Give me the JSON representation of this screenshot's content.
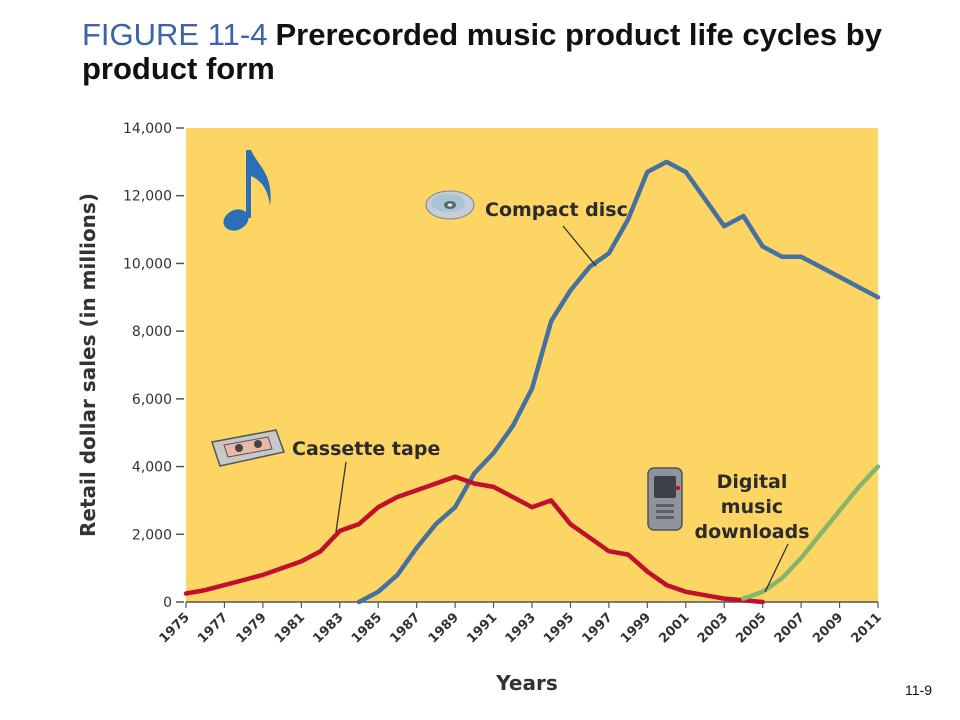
{
  "slide": {
    "figure_label": "FIGURE 11-4",
    "title": "Prerecorded music product life cycles by product form",
    "page_number": "11-9"
  },
  "colors": {
    "plot_background": "#fcd565",
    "compact_disc": "#46709f",
    "cassette_tape": "#c0102e",
    "digital_downloads": "#87b56a",
    "axis_text": "#333333"
  },
  "chart_data": {
    "type": "line",
    "title": "",
    "xlabel": "Years",
    "ylabel": "Retail dollar sales (in millions)",
    "xlim": [
      1975,
      2011
    ],
    "ylim": [
      0,
      14000
    ],
    "x_ticks": [
      "1975",
      "1977",
      "1979",
      "1981",
      "1983",
      "1985",
      "1987",
      "1989",
      "1991",
      "1993",
      "1995",
      "1997",
      "1999",
      "2001",
      "2003",
      "2005",
      "2007",
      "2009",
      "2011"
    ],
    "y_ticks": [
      "0",
      "2,000",
      "4,000",
      "6,000",
      "8,000",
      "10,000",
      "12,000",
      "14,000"
    ],
    "grid": false,
    "legend": "annotations",
    "series": [
      {
        "name": "Compact disc",
        "key": "compact_disc",
        "icon": "compact-disc-icon",
        "x": [
          1984,
          1985,
          1986,
          1987,
          1988,
          1989,
          1990,
          1991,
          1992,
          1993,
          1994,
          1995,
          1996,
          1997,
          1998,
          1999,
          2000,
          2001,
          2002,
          2003,
          2004,
          2005,
          2006,
          2007,
          2008,
          2009,
          2010,
          2011
        ],
        "y": [
          0,
          300,
          800,
          1600,
          2300,
          2800,
          3800,
          4400,
          5200,
          6300,
          8300,
          9200,
          9900,
          10300,
          11300,
          12700,
          13000,
          12700,
          11900,
          11100,
          11400,
          10500,
          10200,
          10200,
          9900,
          9600,
          9300,
          9000
        ]
      },
      {
        "name": "Cassette tape",
        "key": "cassette_tape",
        "icon": "cassette-tape-icon",
        "x": [
          1975,
          1976,
          1977,
          1978,
          1979,
          1980,
          1981,
          1982,
          1983,
          1984,
          1985,
          1986,
          1987,
          1988,
          1989,
          1990,
          1991,
          1992,
          1993,
          1994,
          1995,
          1996,
          1997,
          1998,
          1999,
          2000,
          2001,
          2002,
          2003,
          2004,
          2005
        ],
        "y": [
          250,
          350,
          500,
          650,
          800,
          1000,
          1200,
          1500,
          2100,
          2300,
          2800,
          3100,
          3300,
          3500,
          3700,
          3500,
          3400,
          3100,
          2800,
          3000,
          2300,
          1900,
          1500,
          1400,
          900,
          500,
          300,
          200,
          100,
          50,
          0
        ]
      },
      {
        "name": "Digital music downloads",
        "key": "digital_downloads",
        "icon": "digital-music-player-icon",
        "x": [
          2004,
          2005,
          2006,
          2007,
          2008,
          2009,
          2010,
          2011
        ],
        "y": [
          100,
          300,
          700,
          1300,
          2000,
          2700,
          3400,
          4000
        ]
      }
    ]
  }
}
